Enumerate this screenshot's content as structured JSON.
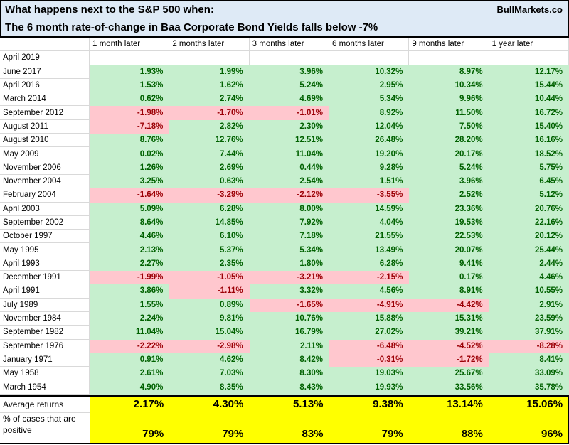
{
  "header": {
    "title": "What happens next to the S&P 500 when:",
    "brand": "BullMarkets.co",
    "subtitle": "The 6 month rate-of-change in Baa Corporate Bond Yields falls below -7%"
  },
  "chart_data": {
    "type": "table",
    "title": "What happens next to the S&P 500 when: The 6 month rate-of-change in Baa Corporate Bond Yields falls below -7%",
    "columns": [
      "1 month later",
      "2 months later",
      "3 months later",
      "6 months later",
      "9 months later",
      "1 year later"
    ],
    "rows": [
      {
        "label": "April 2019",
        "values": [
          null,
          null,
          null,
          null,
          null,
          null
        ]
      },
      {
        "label": "June 2017",
        "values": [
          "1.93%",
          "1.99%",
          "3.96%",
          "10.32%",
          "8.97%",
          "12.17%"
        ]
      },
      {
        "label": "April 2016",
        "values": [
          "1.53%",
          "1.62%",
          "5.24%",
          "2.95%",
          "10.34%",
          "15.44%"
        ]
      },
      {
        "label": "March 2014",
        "values": [
          "0.62%",
          "2.74%",
          "4.69%",
          "5.34%",
          "9.96%",
          "10.44%"
        ]
      },
      {
        "label": "September 2012",
        "values": [
          "-1.98%",
          "-1.70%",
          "-1.01%",
          "8.92%",
          "11.50%",
          "16.72%"
        ]
      },
      {
        "label": "August 2011",
        "values": [
          "-7.18%",
          "2.82%",
          "2.30%",
          "12.04%",
          "7.50%",
          "15.40%"
        ]
      },
      {
        "label": "August 2010",
        "values": [
          "8.76%",
          "12.76%",
          "12.51%",
          "26.48%",
          "28.20%",
          "16.16%"
        ]
      },
      {
        "label": "May 2009",
        "values": [
          "0.02%",
          "7.44%",
          "11.04%",
          "19.20%",
          "20.17%",
          "18.52%"
        ]
      },
      {
        "label": "November 2006",
        "values": [
          "1.26%",
          "2.69%",
          "0.44%",
          "9.28%",
          "5.24%",
          "5.75%"
        ]
      },
      {
        "label": "November 2004",
        "values": [
          "3.25%",
          "0.63%",
          "2.54%",
          "1.51%",
          "3.96%",
          "6.45%"
        ]
      },
      {
        "label": "February 2004",
        "values": [
          "-1.64%",
          "-3.29%",
          "-2.12%",
          "-3.55%",
          "2.52%",
          "5.12%"
        ]
      },
      {
        "label": "April 2003",
        "values": [
          "5.09%",
          "6.28%",
          "8.00%",
          "14.59%",
          "23.36%",
          "20.76%"
        ]
      },
      {
        "label": "September 2002",
        "values": [
          "8.64%",
          "14.85%",
          "7.92%",
          "4.04%",
          "19.53%",
          "22.16%"
        ]
      },
      {
        "label": "October 1997",
        "values": [
          "4.46%",
          "6.10%",
          "7.18%",
          "21.55%",
          "22.53%",
          "20.12%"
        ]
      },
      {
        "label": "May 1995",
        "values": [
          "2.13%",
          "5.37%",
          "5.34%",
          "13.49%",
          "20.07%",
          "25.44%"
        ]
      },
      {
        "label": "April 1993",
        "values": [
          "2.27%",
          "2.35%",
          "1.80%",
          "6.28%",
          "9.41%",
          "2.44%"
        ]
      },
      {
        "label": "December 1991",
        "values": [
          "-1.99%",
          "-1.05%",
          "-3.21%",
          "-2.15%",
          "0.17%",
          "4.46%"
        ]
      },
      {
        "label": "April 1991",
        "values": [
          "3.86%",
          "-1.11%",
          "3.32%",
          "4.56%",
          "8.91%",
          "10.55%"
        ]
      },
      {
        "label": "July 1989",
        "values": [
          "1.55%",
          "0.89%",
          "-1.65%",
          "-4.91%",
          "-4.42%",
          "2.91%"
        ]
      },
      {
        "label": "November 1984",
        "values": [
          "2.24%",
          "9.81%",
          "10.76%",
          "15.88%",
          "15.31%",
          "23.59%"
        ]
      },
      {
        "label": "September 1982",
        "values": [
          "11.04%",
          "15.04%",
          "16.79%",
          "27.02%",
          "39.21%",
          "37.91%"
        ]
      },
      {
        "label": "September 1976",
        "values": [
          "-2.22%",
          "-2.98%",
          "2.11%",
          "-6.48%",
          "-4.52%",
          "-8.28%"
        ]
      },
      {
        "label": "January 1971",
        "values": [
          "0.91%",
          "4.62%",
          "8.42%",
          "-0.31%",
          "-1.72%",
          "8.41%"
        ]
      },
      {
        "label": "May 1958",
        "values": [
          "2.61%",
          "7.03%",
          "8.30%",
          "19.03%",
          "25.67%",
          "33.09%"
        ]
      },
      {
        "label": "March 1954",
        "values": [
          "4.90%",
          "8.35%",
          "8.43%",
          "19.93%",
          "33.56%",
          "35.78%"
        ]
      }
    ],
    "summary": {
      "average_label": "Average returns",
      "average_values": [
        "2.17%",
        "4.30%",
        "5.13%",
        "9.38%",
        "13.14%",
        "15.06%"
      ],
      "positive_label": "% of cases that are positive",
      "positive_values": [
        "79%",
        "79%",
        "83%",
        "79%",
        "88%",
        "96%"
      ]
    },
    "colors": {
      "header_bg": "#DEEAF6",
      "green_bg": "#C6EFCE",
      "green_text": "#006100",
      "red_bg": "#FFC7CE",
      "red_text": "#9C0006",
      "summary_bg": "#FFFF00"
    },
    "layout": {
      "grid": "on",
      "positive_fill": "green",
      "negative_fill": "red"
    }
  }
}
